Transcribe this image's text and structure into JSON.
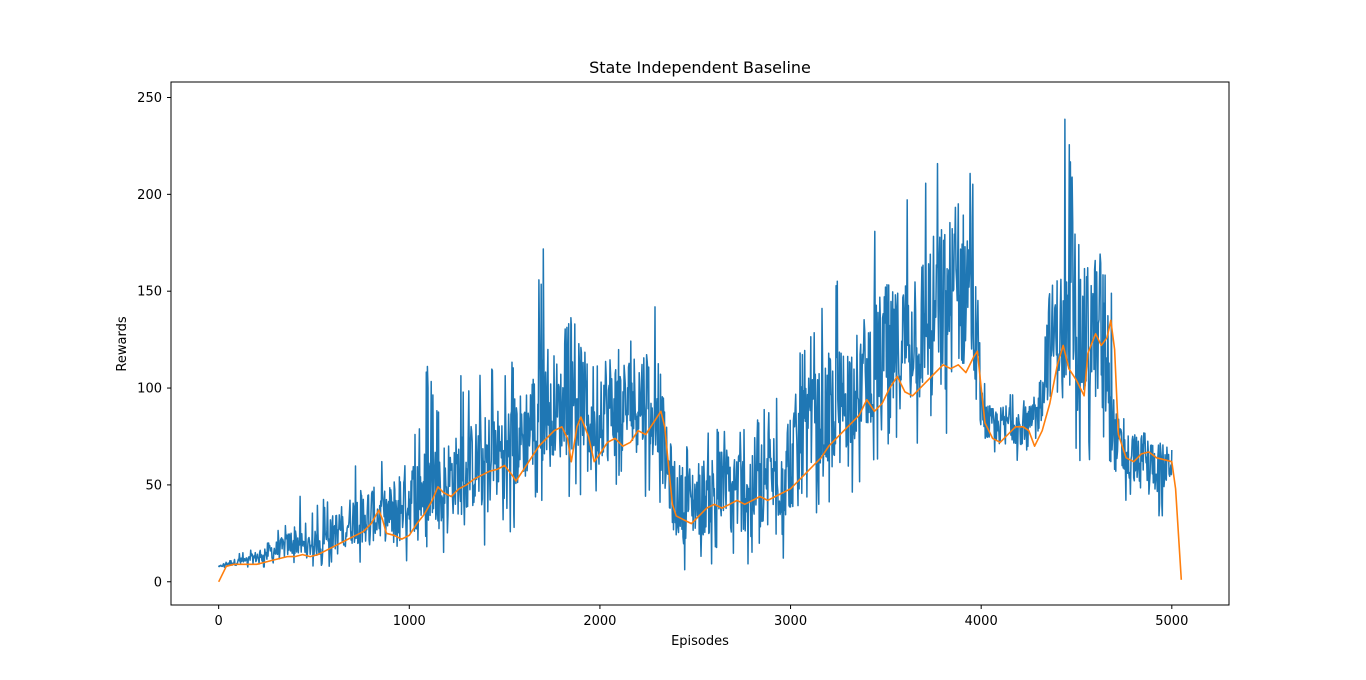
{
  "chart_data": {
    "type": "line",
    "title": "State Independent Baseline",
    "xlabel": "Episodes",
    "ylabel": "Rewards",
    "xlim": [
      -250,
      5300
    ],
    "ylim": [
      -12,
      258
    ],
    "xticks": [
      0,
      1000,
      2000,
      3000,
      4000,
      5000
    ],
    "yticks": [
      0,
      50,
      100,
      150,
      200,
      250
    ],
    "grid": false,
    "series": [
      {
        "color": "#1f77b4",
        "style": "noisy",
        "points": [
          [
            0,
            7,
            8,
            9
          ],
          [
            50,
            7,
            11,
            14
          ],
          [
            100,
            7,
            12,
            15
          ],
          [
            150,
            7,
            13,
            16
          ],
          [
            200,
            7,
            16,
            20
          ],
          [
            250,
            7,
            20,
            27
          ],
          [
            300,
            7,
            21,
            28
          ],
          [
            350,
            7,
            24,
            30
          ],
          [
            400,
            7,
            30,
            56
          ],
          [
            450,
            7,
            24,
            34
          ],
          [
            500,
            7,
            26,
            38
          ],
          [
            550,
            7,
            28,
            45
          ],
          [
            600,
            8,
            35,
            50
          ],
          [
            650,
            8,
            40,
            82
          ],
          [
            700,
            8,
            45,
            62
          ],
          [
            750,
            8,
            48,
            73
          ],
          [
            800,
            8,
            50,
            80
          ],
          [
            850,
            10,
            46,
            70
          ],
          [
            900,
            8,
            50,
            72
          ],
          [
            950,
            8,
            60,
            70
          ],
          [
            1000,
            8,
            62,
            73
          ],
          [
            1050,
            10,
            66,
            85
          ],
          [
            1100,
            12,
            70,
            117
          ],
          [
            1150,
            14,
            72,
            100
          ],
          [
            1200,
            15,
            74,
            119
          ],
          [
            1250,
            16,
            76,
            104
          ],
          [
            1300,
            16,
            80,
            118
          ],
          [
            1350,
            18,
            84,
            104
          ],
          [
            1400,
            18,
            86,
            117
          ],
          [
            1450,
            20,
            90,
            114
          ],
          [
            1500,
            22,
            92,
            107
          ],
          [
            1550,
            24,
            96,
            116
          ],
          [
            1600,
            30,
            100,
            131
          ],
          [
            1650,
            34,
            110,
            140
          ],
          [
            1700,
            38,
            130,
            184
          ],
          [
            1750,
            42,
            120,
            150
          ],
          [
            1800,
            42,
            110,
            130
          ],
          [
            1850,
            44,
            120,
            137
          ],
          [
            1900,
            44,
            125,
            148
          ],
          [
            1950,
            40,
            110,
            120
          ],
          [
            2000,
            42,
            120,
            125
          ],
          [
            2050,
            40,
            120,
            130
          ],
          [
            2100,
            42,
            115,
            122
          ],
          [
            2150,
            42,
            118,
            130
          ],
          [
            2200,
            44,
            120,
            129
          ],
          [
            2250,
            44,
            125,
            156
          ],
          [
            2300,
            44,
            125,
            141
          ],
          [
            2350,
            20,
            80,
            85
          ],
          [
            2400,
            8,
            62,
            75
          ],
          [
            2450,
            6,
            60,
            70
          ],
          [
            2500,
            6,
            62,
            72
          ],
          [
            2550,
            6,
            65,
            75
          ],
          [
            2600,
            5,
            68,
            80
          ],
          [
            2650,
            6,
            70,
            84
          ],
          [
            2700,
            6,
            72,
            80
          ],
          [
            2750,
            6,
            70,
            79
          ],
          [
            2800,
            6,
            74,
            80
          ],
          [
            2850,
            8,
            76,
            90
          ],
          [
            2900,
            6,
            80,
            95
          ],
          [
            2950,
            8,
            82,
            100
          ],
          [
            3000,
            10,
            94,
            119
          ],
          [
            3050,
            20,
            100,
            124
          ],
          [
            3100,
            24,
            106,
            127
          ],
          [
            3150,
            30,
            110,
            173
          ],
          [
            3200,
            34,
            118,
            151
          ],
          [
            3250,
            40,
            120,
            160
          ],
          [
            3300,
            44,
            126,
            161
          ],
          [
            3350,
            48,
            130,
            168
          ],
          [
            3400,
            54,
            140,
            179
          ],
          [
            3450,
            60,
            145,
            188
          ],
          [
            3500,
            56,
            155,
            193
          ],
          [
            3550,
            60,
            150,
            175
          ],
          [
            3600,
            62,
            160,
            193
          ],
          [
            3650,
            68,
            170,
            221
          ],
          [
            3700,
            68,
            170,
            208
          ],
          [
            3750,
            70,
            180,
            215
          ],
          [
            3800,
            70,
            185,
            221
          ],
          [
            3850,
            72,
            190,
            191
          ],
          [
            3900,
            72,
            192,
            200
          ],
          [
            3950,
            72,
            200,
            221
          ],
          [
            4000,
            66,
            100,
            110
          ],
          [
            4050,
            62,
            90,
            95
          ],
          [
            4100,
            62,
            90,
            95
          ],
          [
            4150,
            62,
            95,
            98
          ],
          [
            4200,
            62,
            92,
            96
          ],
          [
            4250,
            64,
            90,
            92
          ],
          [
            4300,
            66,
            100,
            110
          ],
          [
            4350,
            70,
            150,
            200
          ],
          [
            4400,
            70,
            160,
            228
          ],
          [
            4450,
            70,
            165,
            246
          ],
          [
            4500,
            56,
            150,
            185
          ],
          [
            4550,
            56,
            165,
            222
          ],
          [
            4600,
            60,
            170,
            212
          ],
          [
            4650,
            64,
            175,
            208
          ],
          [
            4700,
            42,
            90,
            120
          ],
          [
            4750,
            40,
            78,
            84
          ],
          [
            4800,
            40,
            78,
            80
          ],
          [
            4850,
            40,
            75,
            77
          ],
          [
            4900,
            36,
            74,
            80
          ],
          [
            4950,
            32,
            72,
            78
          ],
          [
            5000,
            48,
            68,
            72
          ]
        ]
      },
      {
        "color": "#ff7f0e",
        "style": "smooth",
        "points": [
          [
            0,
            0
          ],
          [
            40,
            8
          ],
          [
            80,
            9
          ],
          [
            120,
            9
          ],
          [
            160,
            9
          ],
          [
            200,
            9
          ],
          [
            240,
            10
          ],
          [
            280,
            11
          ],
          [
            320,
            12
          ],
          [
            360,
            13
          ],
          [
            400,
            13
          ],
          [
            440,
            14
          ],
          [
            480,
            13
          ],
          [
            520,
            14
          ],
          [
            560,
            16
          ],
          [
            600,
            18
          ],
          [
            640,
            20
          ],
          [
            680,
            22
          ],
          [
            720,
            24
          ],
          [
            760,
            26
          ],
          [
            800,
            30
          ],
          [
            840,
            37
          ],
          [
            860,
            32
          ],
          [
            880,
            25
          ],
          [
            920,
            24
          ],
          [
            960,
            22
          ],
          [
            1000,
            24
          ],
          [
            1040,
            30
          ],
          [
            1080,
            35
          ],
          [
            1120,
            42
          ],
          [
            1150,
            49
          ],
          [
            1180,
            46
          ],
          [
            1220,
            44
          ],
          [
            1260,
            48
          ],
          [
            1300,
            50
          ],
          [
            1340,
            53
          ],
          [
            1380,
            55
          ],
          [
            1420,
            57
          ],
          [
            1460,
            58
          ],
          [
            1500,
            60
          ],
          [
            1540,
            55
          ],
          [
            1560,
            52
          ],
          [
            1600,
            58
          ],
          [
            1640,
            64
          ],
          [
            1680,
            70
          ],
          [
            1720,
            74
          ],
          [
            1760,
            78
          ],
          [
            1800,
            80
          ],
          [
            1830,
            74
          ],
          [
            1850,
            62
          ],
          [
            1880,
            80
          ],
          [
            1900,
            85
          ],
          [
            1940,
            75
          ],
          [
            1970,
            62
          ],
          [
            2000,
            66
          ],
          [
            2040,
            72
          ],
          [
            2080,
            74
          ],
          [
            2120,
            70
          ],
          [
            2160,
            72
          ],
          [
            2200,
            78
          ],
          [
            2240,
            76
          ],
          [
            2280,
            82
          ],
          [
            2320,
            88
          ],
          [
            2340,
            80
          ],
          [
            2360,
            60
          ],
          [
            2380,
            40
          ],
          [
            2400,
            34
          ],
          [
            2440,
            32
          ],
          [
            2480,
            30
          ],
          [
            2520,
            34
          ],
          [
            2560,
            38
          ],
          [
            2600,
            40
          ],
          [
            2640,
            38
          ],
          [
            2680,
            40
          ],
          [
            2720,
            42
          ],
          [
            2760,
            40
          ],
          [
            2800,
            42
          ],
          [
            2840,
            44
          ],
          [
            2880,
            42
          ],
          [
            2920,
            44
          ],
          [
            2960,
            46
          ],
          [
            3000,
            48
          ],
          [
            3040,
            52
          ],
          [
            3080,
            56
          ],
          [
            3120,
            60
          ],
          [
            3160,
            64
          ],
          [
            3200,
            70
          ],
          [
            3240,
            74
          ],
          [
            3280,
            78
          ],
          [
            3320,
            82
          ],
          [
            3360,
            86
          ],
          [
            3400,
            94
          ],
          [
            3440,
            88
          ],
          [
            3480,
            92
          ],
          [
            3520,
            100
          ],
          [
            3560,
            106
          ],
          [
            3600,
            98
          ],
          [
            3640,
            96
          ],
          [
            3680,
            100
          ],
          [
            3720,
            104
          ],
          [
            3760,
            108
          ],
          [
            3800,
            112
          ],
          [
            3840,
            110
          ],
          [
            3880,
            112
          ],
          [
            3920,
            108
          ],
          [
            3960,
            116
          ],
          [
            3980,
            119
          ],
          [
            4000,
            100
          ],
          [
            4020,
            82
          ],
          [
            4060,
            74
          ],
          [
            4100,
            72
          ],
          [
            4140,
            76
          ],
          [
            4180,
            80
          ],
          [
            4220,
            80
          ],
          [
            4250,
            78
          ],
          [
            4280,
            70
          ],
          [
            4320,
            78
          ],
          [
            4360,
            92
          ],
          [
            4400,
            112
          ],
          [
            4430,
            122
          ],
          [
            4460,
            110
          ],
          [
            4500,
            104
          ],
          [
            4540,
            96
          ],
          [
            4560,
            118
          ],
          [
            4600,
            128
          ],
          [
            4630,
            122
          ],
          [
            4660,
            126
          ],
          [
            4680,
            135
          ],
          [
            4700,
            120
          ],
          [
            4720,
            76
          ],
          [
            4760,
            64
          ],
          [
            4800,
            62
          ],
          [
            4840,
            66
          ],
          [
            4880,
            67
          ],
          [
            4920,
            64
          ],
          [
            4960,
            63
          ],
          [
            5000,
            62
          ],
          [
            5020,
            48
          ],
          [
            5050,
            1
          ]
        ]
      }
    ]
  }
}
